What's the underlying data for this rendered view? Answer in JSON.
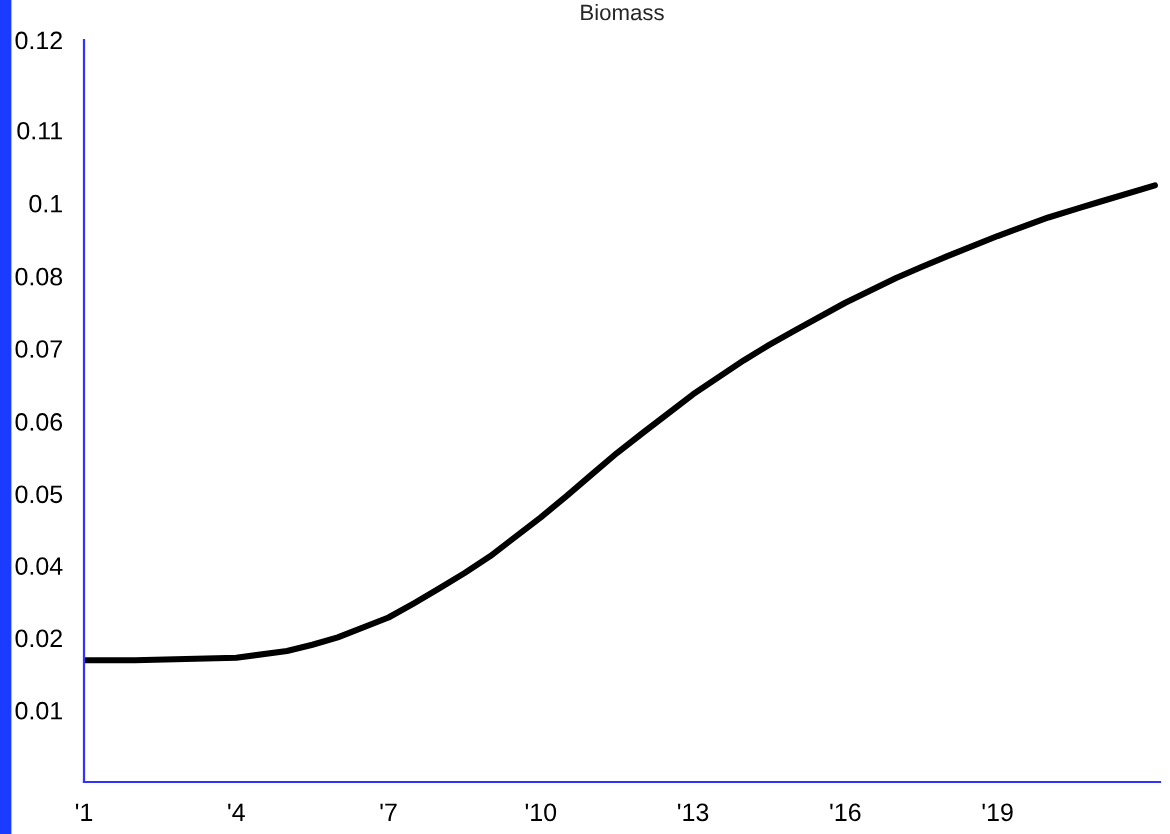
{
  "chart_data": {
    "type": "line",
    "title": "Biomass",
    "x": [
      1,
      2,
      3,
      4,
      5,
      5.5,
      6,
      7,
      7.5,
      8,
      8.5,
      9,
      10,
      10.5,
      11,
      11.5,
      12,
      13,
      14,
      14.5,
      15,
      16,
      17,
      17.5,
      18,
      19,
      20,
      20.6,
      21,
      22.1
    ],
    "series": [
      {
        "color": "#000000",
        "values": [
          0.0197,
          0.0197,
          0.0199,
          0.0201,
          0.0212,
          0.0222,
          0.0234,
          0.0266,
          0.0289,
          0.0313,
          0.0338,
          0.0365,
          0.0428,
          0.0462,
          0.0497,
          0.0532,
          0.0564,
          0.0627,
          0.0682,
          0.0707,
          0.073,
          0.0775,
          0.0815,
          0.0833,
          0.085,
          0.0883,
          0.0913,
          0.0928,
          0.0938,
          0.0965
        ]
      }
    ],
    "xlim": [
      1,
      22.2
    ],
    "ylim": [
      0,
      0.12
    ],
    "xticks": [
      {
        "value": 1,
        "label": "'1"
      },
      {
        "value": 4,
        "label": "'4"
      },
      {
        "value": 7,
        "label": "'7"
      },
      {
        "value": 10,
        "label": "'10"
      },
      {
        "value": 13,
        "label": "'13"
      },
      {
        "value": 16,
        "label": "'16"
      },
      {
        "value": 19,
        "label": "'19"
      }
    ],
    "yticks": [
      {
        "value": 0,
        "label": null
      },
      {
        "value": 0.0116,
        "label": "0.01"
      },
      {
        "value": 0.0233,
        "label": "0.02"
      },
      {
        "value": 0.035,
        "label": "0.04"
      },
      {
        "value": 0.0466,
        "label": "0.05"
      },
      {
        "value": 0.0583,
        "label": "0.06"
      },
      {
        "value": 0.0701,
        "label": "0.07"
      },
      {
        "value": 0.0818,
        "label": "0.08"
      },
      {
        "value": 0.0936,
        "label": "0.1"
      },
      {
        "value": 0.1054,
        "label": "0.11"
      },
      {
        "value": 0.12,
        "label": "0.12"
      }
    ],
    "grid": false,
    "marker": "none",
    "line_style": "solid"
  }
}
